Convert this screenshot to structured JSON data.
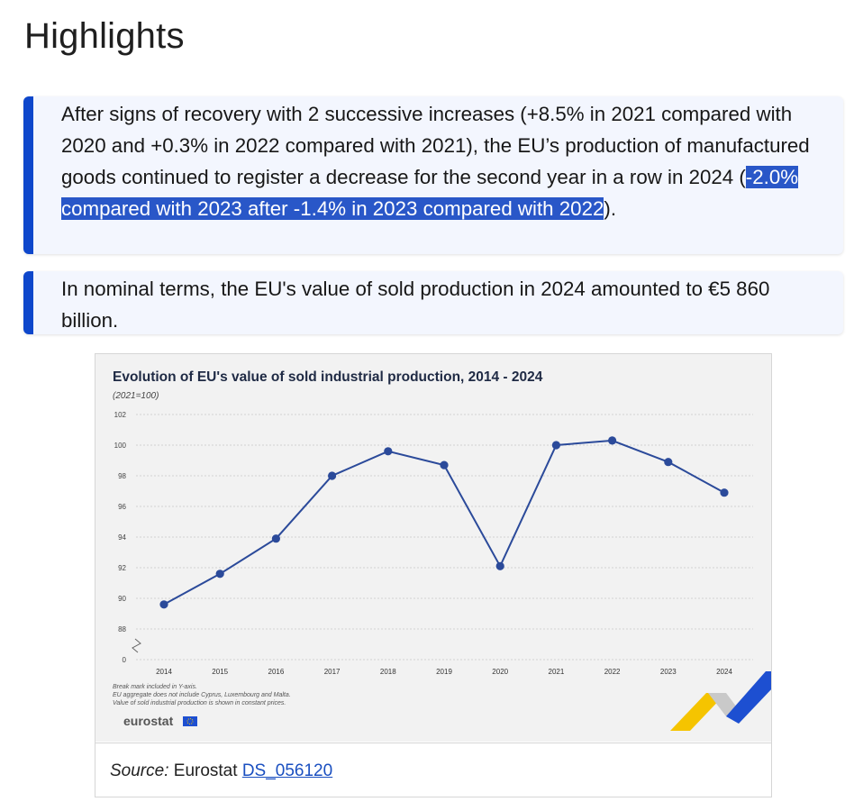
{
  "page": {
    "title": "Highlights"
  },
  "callouts": [
    {
      "text_before": "After signs of recovery with 2 successive increases (+8.5% in 2021 compared with 2020 and +0.3% in 2022 compared with 2021), the EU’s production of manufactured goods continued to register a decrease for the second year in a row in 2024 (",
      "text_highlighted": "-2.0% compared with 2023 after -1.4% in 2023 compared with 2022",
      "text_after": ")."
    },
    {
      "text": "In nominal terms, the EU's value of sold production in 2024 amounted to €5 860 billion."
    }
  ],
  "figure": {
    "source_label": "Source:",
    "source_text": "Eurostat",
    "source_link": "DS_056120",
    "notes": [
      "Break mark included in Y-axis.",
      "EU aggregate does not include Cyprus, Luxembourg and Malta.",
      "Value of sold industrial production is shown in constant prices."
    ],
    "logo_text": "eurostat"
  },
  "colors": {
    "accent": "#0e47cb",
    "highlight": "#2957c8",
    "line": "#2b4a9a",
    "chart_bg": "#f2f2f2",
    "ribbon_yellow": "#f5c400",
    "ribbon_blue": "#1d4fd1"
  },
  "chart_data": {
    "type": "line",
    "title": "Evolution of EU's value of sold industrial production, 2014 - 2024",
    "subtitle": "(2021=100)",
    "xlabel": "",
    "ylabel": "",
    "categories": [
      "2014",
      "2015",
      "2016",
      "2017",
      "2018",
      "2019",
      "2020",
      "2021",
      "2022",
      "2023",
      "2024"
    ],
    "series": [
      {
        "values": [
          89.6,
          91.6,
          93.9,
          98.0,
          99.6,
          98.7,
          92.1,
          100.0,
          100.3,
          98.9,
          96.9
        ]
      }
    ],
    "yticks": [
      "102",
      "100",
      "98",
      "96",
      "94",
      "92",
      "90",
      "88",
      "0"
    ],
    "ylim": [
      86,
      102
    ],
    "y_axis_break": true,
    "grid": true,
    "legend": "none"
  }
}
